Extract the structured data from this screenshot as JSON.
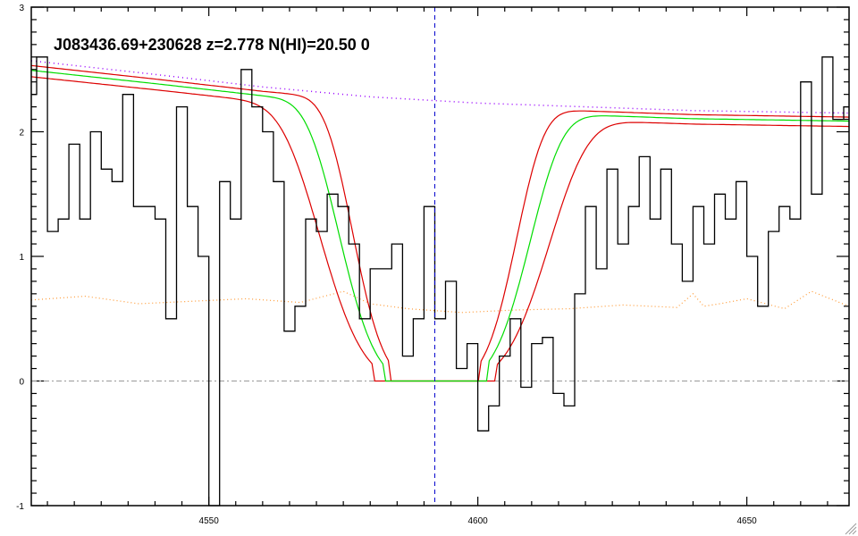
{
  "chart_data": {
    "type": "line",
    "title": "J083436.69+230628 z=2.778 N(HI)=20.50 0",
    "xlim": [
      4517,
      4669
    ],
    "ylim": [
      -1,
      3
    ],
    "x_ticks": [
      "4550",
      "4600",
      "4650"
    ],
    "y_ticks": [
      "-1",
      "0",
      "1",
      "2",
      "3"
    ],
    "grid": false,
    "line_center": 4592,
    "colors": {
      "flux": "#000000",
      "model": "#00dd00",
      "model_bounds": "#dd0000",
      "continuum": "#9900ff",
      "error": "#ff9933",
      "zero": "#999999",
      "center": "#0000cc"
    },
    "model_params": {
      "center": 4592,
      "half_width": 17.5,
      "half_width_low": 15,
      "half_width_high": 21
    },
    "continuum": [
      [
        4517,
        2.57
      ],
      [
        4540,
        2.46
      ],
      [
        4560,
        2.36
      ],
      [
        4580,
        2.28
      ],
      [
        4600,
        2.23
      ],
      [
        4620,
        2.2
      ],
      [
        4640,
        2.17
      ],
      [
        4669,
        2.15
      ]
    ],
    "series": [
      {
        "name": "",
        "values_x": [
          4517,
          4519,
          4521,
          4523,
          4525,
          4527,
          4529,
          4531,
          4533,
          4535,
          4537,
          4539,
          4541,
          4543,
          4545,
          4547,
          4549,
          4551,
          4553,
          4555,
          4557,
          4559,
          4561,
          4563,
          4565,
          4567,
          4569,
          4571,
          4573,
          4575,
          4577,
          4579,
          4581,
          4583,
          4585,
          4587,
          4589,
          4591,
          4593,
          4595,
          4597,
          4599,
          4601,
          4603,
          4605,
          4607,
          4609,
          4611,
          4613,
          4615,
          4617,
          4619,
          4621,
          4623,
          4625,
          4627,
          4629,
          4631,
          4633,
          4635,
          4637,
          4639,
          4641,
          4643,
          4645,
          4647,
          4649,
          4651,
          4653,
          4655,
          4657,
          4659,
          4661,
          4663,
          4665,
          4667,
          4669
        ],
        "values_y": [
          2.3,
          2.6,
          1.2,
          1.3,
          1.9,
          1.3,
          2.0,
          1.7,
          1.6,
          2.3,
          1.4,
          1.4,
          1.3,
          0.5,
          2.2,
          1.4,
          1.0,
          -1.0,
          1.6,
          1.3,
          2.5,
          2.2,
          2.0,
          1.6,
          0.4,
          0.6,
          1.3,
          1.2,
          1.5,
          1.4,
          1.1,
          0.5,
          0.9,
          0.9,
          1.1,
          0.2,
          0.5,
          1.4,
          0.5,
          0.8,
          0.1,
          0.3,
          -0.4,
          -0.2,
          0.2,
          0.5,
          -0.05,
          0.3,
          0.35,
          -0.1,
          -0.2,
          0.7,
          1.4,
          0.9,
          1.7,
          1.1,
          1.4,
          1.8,
          1.3,
          1.7,
          1.1,
          0.8,
          1.4,
          1.1,
          1.5,
          1.3,
          1.6,
          1.0,
          0.6,
          1.2,
          1.4,
          1.3,
          2.4,
          1.5,
          2.6,
          2.1,
          2.2
        ]
      }
    ],
    "error_spectrum": {
      "values_x": [
        4517,
        4527,
        4537,
        4547,
        4557,
        4567,
        4575,
        4580,
        4587,
        4597,
        4607,
        4617,
        4627,
        4637,
        4640,
        4642,
        4645,
        4650,
        4657,
        4662,
        4669
      ],
      "values_y": [
        0.65,
        0.68,
        0.62,
        0.64,
        0.66,
        0.63,
        0.72,
        0.62,
        0.58,
        0.55,
        0.57,
        0.58,
        0.61,
        0.59,
        0.7,
        0.6,
        0.62,
        0.66,
        0.58,
        0.72,
        0.6
      ]
    }
  }
}
